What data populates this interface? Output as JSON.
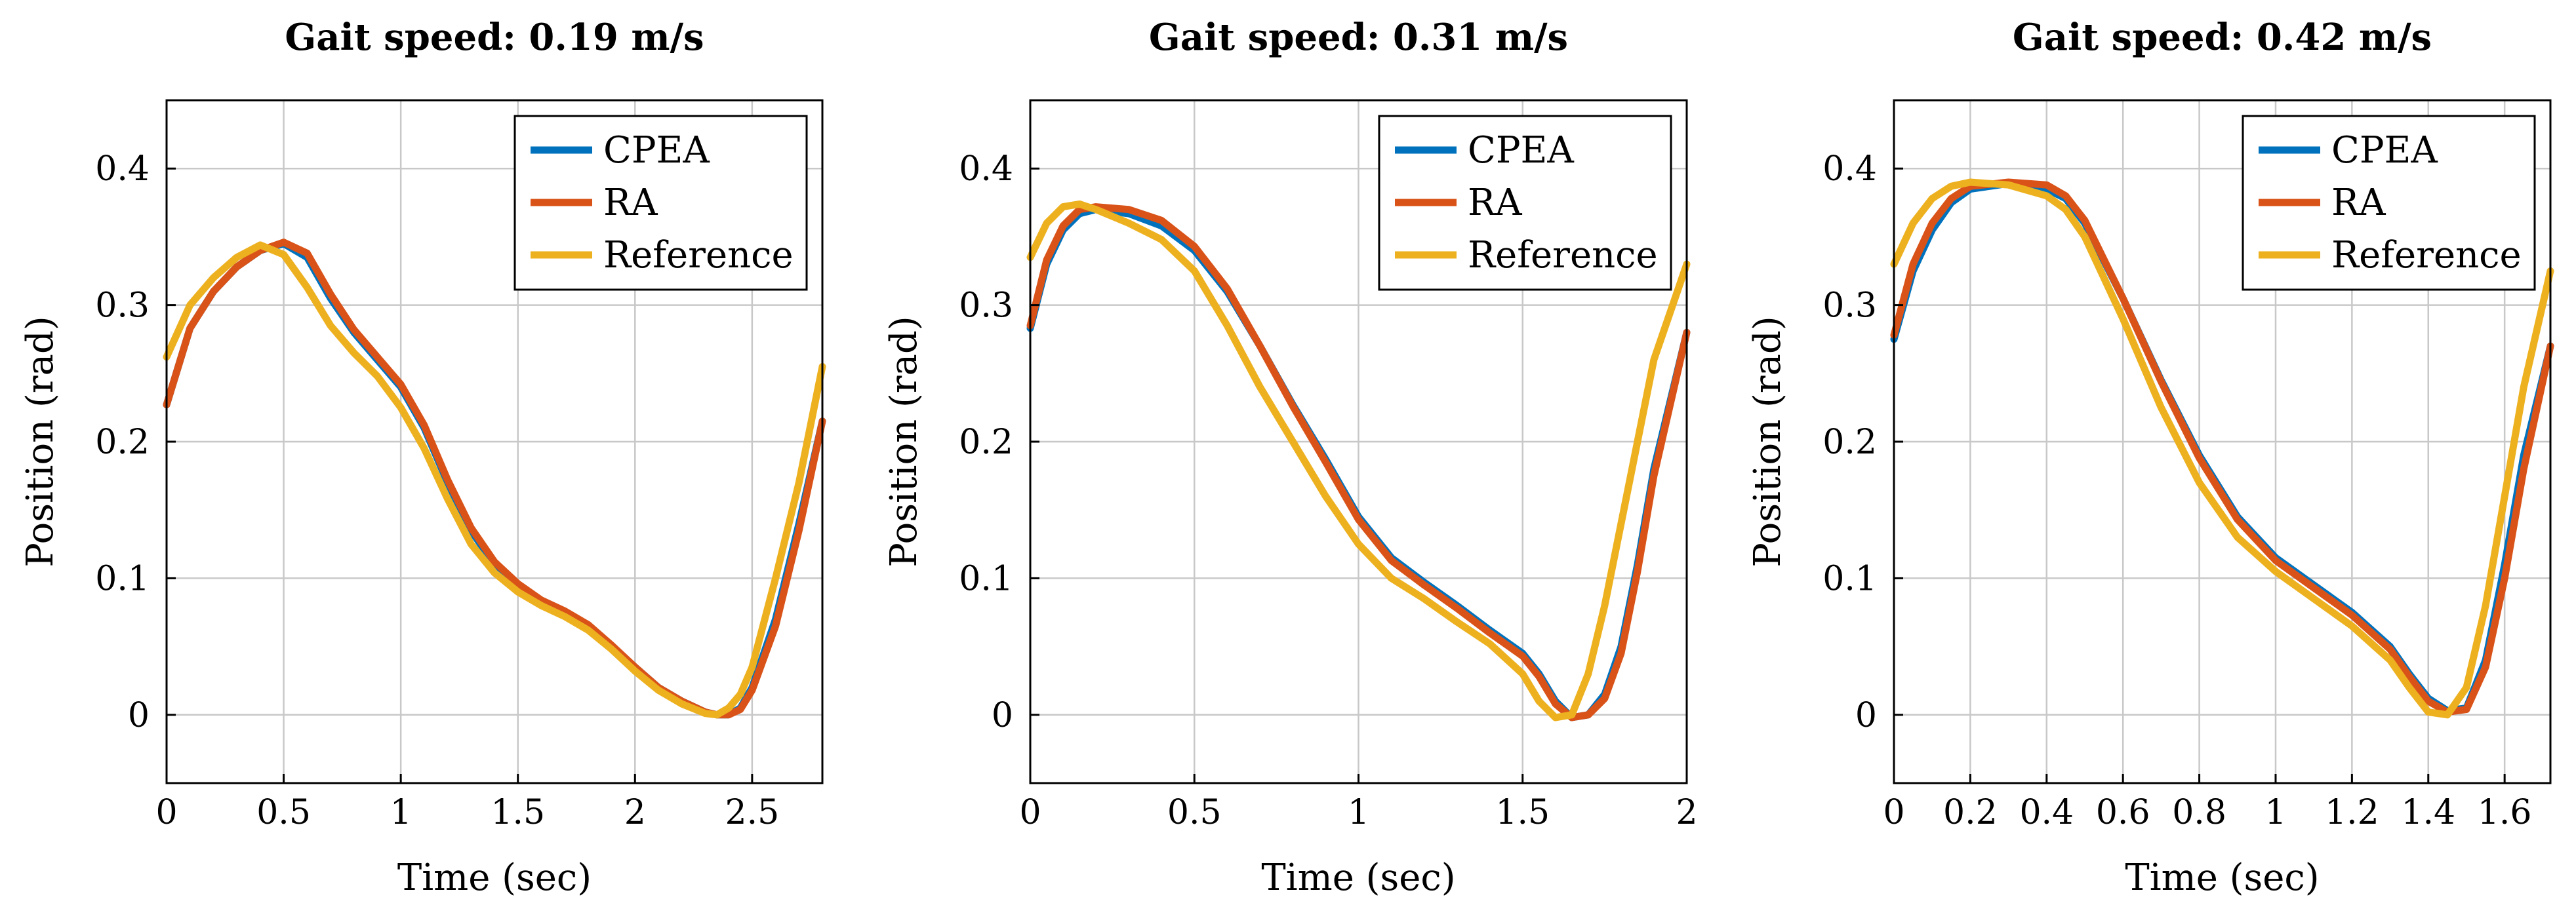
{
  "chart_data": [
    {
      "type": "line",
      "title": "Gait speed: 0.19 m/s",
      "xlabel": "Time (sec)",
      "ylabel": "Position (rad)",
      "xlim": [
        0,
        2.8
      ],
      "ylim": [
        -0.05,
        0.45
      ],
      "xticks": [
        0,
        0.5,
        1,
        1.5,
        2,
        2.5
      ],
      "xtick_labels": [
        "0",
        "0.5",
        "1",
        "1.5",
        "2",
        "2.5"
      ],
      "yticks": [
        0,
        0.1,
        0.2,
        0.3,
        0.4
      ],
      "ytick_labels": [
        "0",
        "0.1",
        "0.2",
        "0.3",
        "0.4"
      ],
      "grid": true,
      "legend_position": "top-right",
      "series": [
        {
          "name": "CPEA",
          "color": "#0072BD",
          "x": [
            0,
            0.1,
            0.2,
            0.3,
            0.4,
            0.5,
            0.6,
            0.7,
            0.8,
            0.9,
            1.0,
            1.1,
            1.2,
            1.3,
            1.4,
            1.5,
            1.6,
            1.7,
            1.8,
            1.9,
            2.0,
            2.1,
            2.2,
            2.3,
            2.35,
            2.4,
            2.45,
            2.5,
            2.6,
            2.7,
            2.8
          ],
          "y": [
            0.227,
            0.283,
            0.31,
            0.328,
            0.34,
            0.345,
            0.335,
            0.305,
            0.28,
            0.26,
            0.24,
            0.21,
            0.17,
            0.135,
            0.11,
            0.095,
            0.083,
            0.075,
            0.065,
            0.05,
            0.035,
            0.02,
            0.01,
            0.002,
            0.0,
            0.0,
            0.005,
            0.02,
            0.07,
            0.14,
            0.215
          ]
        },
        {
          "name": "RA",
          "color": "#D95319",
          "x": [
            0,
            0.1,
            0.2,
            0.3,
            0.4,
            0.5,
            0.6,
            0.7,
            0.8,
            0.9,
            1.0,
            1.1,
            1.2,
            1.3,
            1.4,
            1.5,
            1.6,
            1.7,
            1.8,
            1.9,
            2.0,
            2.1,
            2.2,
            2.3,
            2.35,
            2.4,
            2.45,
            2.5,
            2.6,
            2.7,
            2.8
          ],
          "y": [
            0.227,
            0.283,
            0.31,
            0.328,
            0.34,
            0.346,
            0.338,
            0.308,
            0.282,
            0.262,
            0.242,
            0.212,
            0.172,
            0.137,
            0.112,
            0.096,
            0.084,
            0.076,
            0.066,
            0.051,
            0.035,
            0.02,
            0.01,
            0.002,
            0.0,
            0.0,
            0.004,
            0.018,
            0.065,
            0.135,
            0.215
          ]
        },
        {
          "name": "Reference",
          "color": "#EDB120",
          "x": [
            0,
            0.1,
            0.2,
            0.3,
            0.4,
            0.5,
            0.6,
            0.7,
            0.8,
            0.9,
            1.0,
            1.1,
            1.2,
            1.3,
            1.4,
            1.5,
            1.6,
            1.7,
            1.8,
            1.9,
            2.0,
            2.1,
            2.2,
            2.3,
            2.35,
            2.4,
            2.45,
            2.5,
            2.6,
            2.7,
            2.8
          ],
          "y": [
            0.262,
            0.3,
            0.32,
            0.335,
            0.344,
            0.337,
            0.313,
            0.285,
            0.265,
            0.248,
            0.225,
            0.195,
            0.158,
            0.125,
            0.104,
            0.09,
            0.08,
            0.072,
            0.062,
            0.048,
            0.032,
            0.018,
            0.008,
            0.001,
            0.0,
            0.005,
            0.015,
            0.035,
            0.1,
            0.17,
            0.255
          ]
        }
      ]
    },
    {
      "type": "line",
      "title": "Gait speed: 0.31 m/s",
      "xlabel": "Time (sec)",
      "ylabel": "Position (rad)",
      "xlim": [
        0,
        2
      ],
      "ylim": [
        -0.05,
        0.45
      ],
      "xticks": [
        0,
        0.5,
        1,
        1.5,
        2
      ],
      "xtick_labels": [
        "0",
        "0.5",
        "1",
        "1.5",
        "2"
      ],
      "yticks": [
        0,
        0.1,
        0.2,
        0.3,
        0.4
      ],
      "ytick_labels": [
        "0",
        "0.1",
        "0.2",
        "0.3",
        "0.4"
      ],
      "grid": true,
      "legend_position": "top-right",
      "series": [
        {
          "name": "CPEA",
          "color": "#0072BD",
          "x": [
            0,
            0.05,
            0.1,
            0.15,
            0.2,
            0.3,
            0.4,
            0.5,
            0.6,
            0.7,
            0.8,
            0.9,
            1.0,
            1.1,
            1.2,
            1.3,
            1.4,
            1.5,
            1.55,
            1.6,
            1.65,
            1.7,
            1.75,
            1.8,
            1.85,
            1.9,
            2.0
          ],
          "y": [
            0.283,
            0.33,
            0.355,
            0.367,
            0.37,
            0.367,
            0.358,
            0.34,
            0.31,
            0.27,
            0.227,
            0.187,
            0.145,
            0.115,
            0.097,
            0.08,
            0.062,
            0.045,
            0.03,
            0.01,
            -0.002,
            0.0,
            0.015,
            0.05,
            0.11,
            0.18,
            0.28
          ]
        },
        {
          "name": "RA",
          "color": "#D95319",
          "x": [
            0,
            0.05,
            0.1,
            0.15,
            0.2,
            0.3,
            0.4,
            0.5,
            0.6,
            0.7,
            0.8,
            0.9,
            1.0,
            1.1,
            1.2,
            1.3,
            1.4,
            1.5,
            1.55,
            1.6,
            1.65,
            1.7,
            1.75,
            1.8,
            1.85,
            1.9,
            2.0
          ],
          "y": [
            0.285,
            0.333,
            0.358,
            0.37,
            0.372,
            0.37,
            0.362,
            0.343,
            0.312,
            0.27,
            0.226,
            0.185,
            0.143,
            0.113,
            0.095,
            0.078,
            0.06,
            0.043,
            0.028,
            0.008,
            -0.002,
            0.0,
            0.012,
            0.045,
            0.105,
            0.175,
            0.28
          ]
        },
        {
          "name": "Reference",
          "color": "#EDB120",
          "x": [
            0,
            0.05,
            0.1,
            0.15,
            0.2,
            0.3,
            0.4,
            0.5,
            0.6,
            0.7,
            0.8,
            0.9,
            1.0,
            1.1,
            1.2,
            1.3,
            1.4,
            1.5,
            1.55,
            1.6,
            1.65,
            1.7,
            1.75,
            1.8,
            1.85,
            1.9,
            2.0
          ],
          "y": [
            0.335,
            0.36,
            0.372,
            0.374,
            0.37,
            0.36,
            0.348,
            0.325,
            0.285,
            0.24,
            0.2,
            0.16,
            0.125,
            0.1,
            0.085,
            0.068,
            0.052,
            0.03,
            0.01,
            -0.002,
            0.0,
            0.03,
            0.08,
            0.14,
            0.2,
            0.26,
            0.33
          ]
        }
      ]
    },
    {
      "type": "line",
      "title": "Gait speed: 0.42 m/s",
      "xlabel": "Time (sec)",
      "ylabel": "Position (rad)",
      "xlim": [
        0,
        1.72
      ],
      "ylim": [
        -0.05,
        0.45
      ],
      "xticks": [
        0,
        0.2,
        0.4,
        0.6,
        0.8,
        1,
        1.2,
        1.4,
        1.6
      ],
      "xtick_labels": [
        "0",
        "0.2",
        "0.4",
        "0.6",
        "0.8",
        "1",
        "1.2",
        "1.4",
        "1.6"
      ],
      "yticks": [
        0,
        0.1,
        0.2,
        0.3,
        0.4
      ],
      "ytick_labels": [
        "0",
        "0.1",
        "0.2",
        "0.3",
        "0.4"
      ],
      "grid": true,
      "legend_position": "top-right",
      "series": [
        {
          "name": "CPEA",
          "color": "#0072BD",
          "x": [
            0,
            0.05,
            0.1,
            0.15,
            0.2,
            0.3,
            0.4,
            0.45,
            0.5,
            0.6,
            0.7,
            0.8,
            0.9,
            1.0,
            1.1,
            1.2,
            1.3,
            1.35,
            1.4,
            1.45,
            1.5,
            1.55,
            1.6,
            1.65,
            1.72
          ],
          "y": [
            0.275,
            0.325,
            0.355,
            0.375,
            0.385,
            0.389,
            0.385,
            0.378,
            0.36,
            0.305,
            0.245,
            0.19,
            0.145,
            0.115,
            0.095,
            0.075,
            0.05,
            0.03,
            0.012,
            0.003,
            0.005,
            0.04,
            0.11,
            0.19,
            0.27
          ]
        },
        {
          "name": "RA",
          "color": "#D95319",
          "x": [
            0,
            0.05,
            0.1,
            0.15,
            0.2,
            0.3,
            0.4,
            0.45,
            0.5,
            0.6,
            0.7,
            0.8,
            0.9,
            1.0,
            1.1,
            1.2,
            1.3,
            1.35,
            1.4,
            1.45,
            1.5,
            1.55,
            1.6,
            1.65,
            1.72
          ],
          "y": [
            0.278,
            0.33,
            0.36,
            0.378,
            0.387,
            0.39,
            0.388,
            0.38,
            0.362,
            0.305,
            0.244,
            0.188,
            0.143,
            0.113,
            0.093,
            0.073,
            0.048,
            0.028,
            0.01,
            0.002,
            0.004,
            0.035,
            0.1,
            0.18,
            0.27
          ]
        },
        {
          "name": "Reference",
          "color": "#EDB120",
          "x": [
            0,
            0.05,
            0.1,
            0.15,
            0.2,
            0.3,
            0.4,
            0.45,
            0.5,
            0.6,
            0.7,
            0.8,
            0.9,
            1.0,
            1.1,
            1.2,
            1.3,
            1.35,
            1.4,
            1.45,
            1.5,
            1.55,
            1.6,
            1.65,
            1.72
          ],
          "y": [
            0.33,
            0.36,
            0.378,
            0.387,
            0.39,
            0.388,
            0.38,
            0.37,
            0.35,
            0.29,
            0.225,
            0.17,
            0.13,
            0.105,
            0.085,
            0.065,
            0.04,
            0.02,
            0.002,
            0.0,
            0.02,
            0.08,
            0.16,
            0.24,
            0.325
          ]
        }
      ]
    }
  ]
}
